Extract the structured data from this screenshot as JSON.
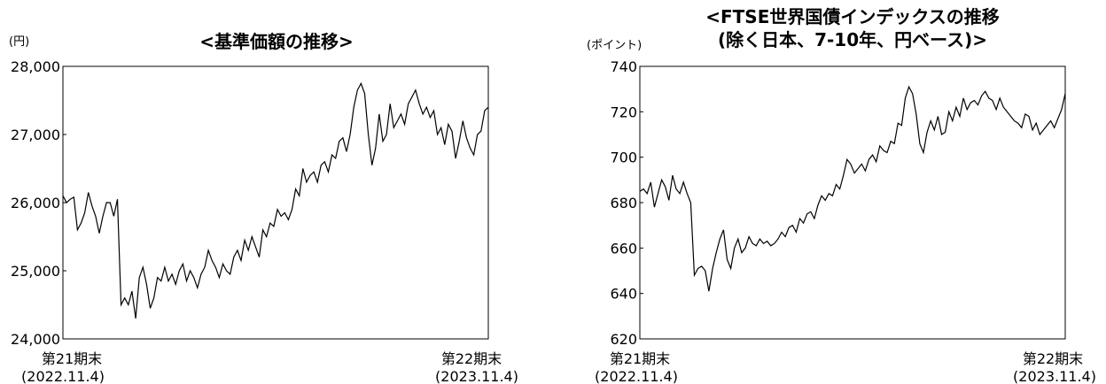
{
  "chart_data": [
    {
      "type": "line",
      "title": "<基準価額の推移>",
      "ylabel": "(円)",
      "ylim": [
        24000,
        28000
      ],
      "yticks": [
        "28,000",
        "27,000",
        "26,000",
        "25,000",
        "24,000"
      ],
      "x_labels": [
        {
          "line1": "第21期末",
          "line2": "(2022.11.4)"
        },
        {
          "line1": "第22期末",
          "line2": "(2023.11.4)"
        }
      ],
      "series": [
        {
          "values": [
            26100,
            26000,
            26050,
            26080,
            25600,
            25700,
            25850,
            26150,
            25950,
            25800,
            25550,
            25800,
            26000,
            26000,
            25800,
            26050,
            24500,
            24600,
            24500,
            24700,
            24300,
            24900,
            25050,
            24800,
            24450,
            24600,
            24900,
            24850,
            25050,
            24850,
            24950,
            24800,
            25000,
            25100,
            24850,
            25000,
            24900,
            24750,
            24950,
            25050,
            25300,
            25150,
            25050,
            24900,
            25100,
            25000,
            24950,
            25200,
            25300,
            25150,
            25450,
            25300,
            25500,
            25350,
            25200,
            25600,
            25500,
            25700,
            25650,
            25900,
            25800,
            25850,
            25750,
            25900,
            26200,
            26100,
            26500,
            26300,
            26400,
            26450,
            26300,
            26550,
            26600,
            26450,
            26700,
            26650,
            26900,
            26950,
            26750,
            27000,
            27400,
            27650,
            27750,
            27600,
            27000,
            26550,
            26800,
            27300,
            26900,
            27000,
            27450,
            27100,
            27200,
            27300,
            27150,
            27450,
            27550,
            27650,
            27450,
            27300,
            27400,
            27250,
            27350,
            27000,
            27100,
            26850,
            27150,
            27050,
            26650,
            26900,
            27200,
            26950,
            26800,
            26700,
            27000,
            27050,
            27350,
            27400
          ]
        }
      ]
    },
    {
      "type": "line",
      "title_line1": "<FTSE世界国債インデックスの推移",
      "title_line2": "(除く日本、7-10年、円ベース)>",
      "ylabel": "(ポイント)",
      "ylim": [
        620,
        740
      ],
      "yticks": [
        "740",
        "720",
        "700",
        "680",
        "660",
        "640",
        "620"
      ],
      "x_labels": [
        {
          "line1": "第21期末",
          "line2": "(2022.11.4)"
        },
        {
          "line1": "第22期末",
          "line2": "(2023.11.4)"
        }
      ],
      "series": [
        {
          "values": [
            685,
            686,
            684,
            689,
            678,
            684,
            690,
            687,
            681,
            692,
            686,
            684,
            689,
            684,
            680,
            648,
            651,
            652,
            650,
            641,
            651,
            658,
            664,
            668,
            655,
            651,
            660,
            664,
            658,
            660,
            665,
            662,
            661,
            664,
            662,
            663,
            661,
            662,
            664,
            667,
            665,
            669,
            670,
            667,
            673,
            671,
            675,
            676,
            673,
            679,
            683,
            681,
            684,
            683,
            688,
            686,
            692,
            699,
            697,
            693,
            695,
            697,
            694,
            699,
            701,
            698,
            705,
            703,
            702,
            707,
            706,
            715,
            714,
            726,
            731,
            728,
            719,
            706,
            702,
            711,
            716,
            712,
            718,
            710,
            711,
            720,
            716,
            722,
            718,
            726,
            721,
            724,
            725,
            723,
            727,
            729,
            726,
            725,
            721,
            726,
            722,
            720,
            718,
            716,
            715,
            713,
            719,
            718,
            712,
            715,
            710,
            712,
            714,
            716,
            713,
            717,
            721,
            728
          ]
        }
      ]
    }
  ]
}
